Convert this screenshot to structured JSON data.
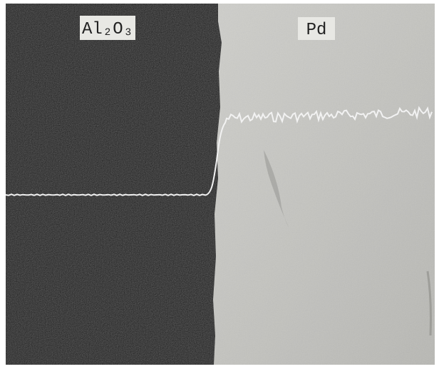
{
  "labels": {
    "left": "Al₂O₃",
    "right": "Pd"
  }
}
